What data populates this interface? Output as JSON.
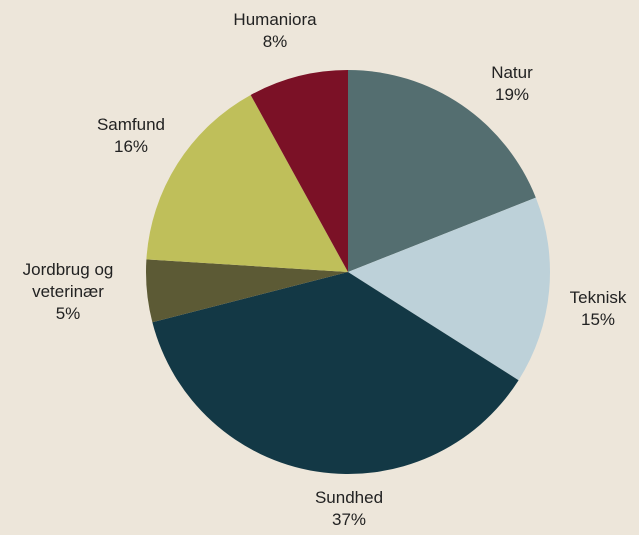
{
  "chart_data": {
    "type": "pie",
    "categories": [
      "Natur",
      "Teknisk",
      "Sundhed",
      "Jordbrug og veterinær",
      "Samfund",
      "Humaniora"
    ],
    "values": [
      19,
      15,
      37,
      5,
      16,
      8
    ],
    "value_labels": [
      "19%",
      "15%",
      "37%",
      "5%",
      "16%",
      "8%"
    ],
    "colors": [
      "#546e70",
      "#bdd1d9",
      "#133845",
      "#5c5a35",
      "#bfbf5a",
      "#7b1126"
    ]
  }
}
